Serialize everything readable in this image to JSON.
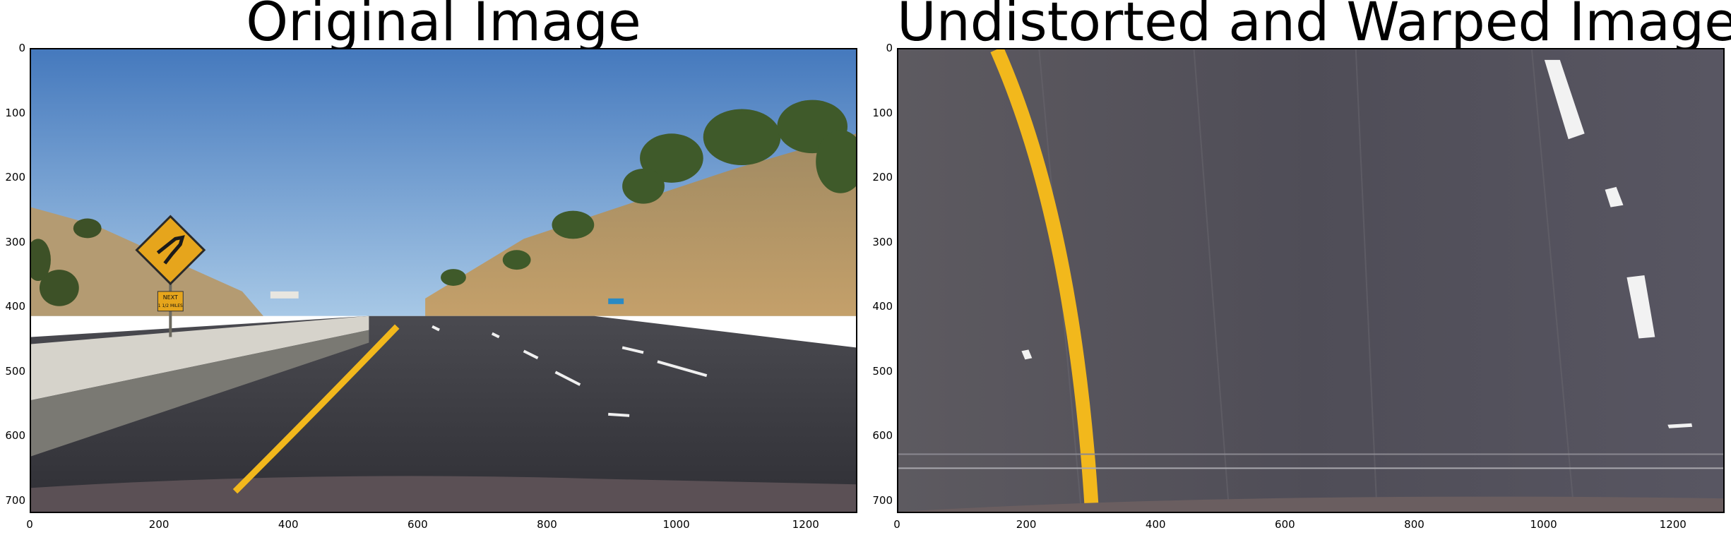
{
  "panels": [
    {
      "title": "Original Image",
      "xticks": [
        "0",
        "200",
        "400",
        "600",
        "800",
        "1000",
        "1200"
      ],
      "yticks": [
        "0",
        "100",
        "200",
        "300",
        "400",
        "500",
        "600",
        "700"
      ],
      "sign": {
        "line1": "NEXT",
        "line2": "1 1/2 MILES"
      }
    },
    {
      "title": "Undistorted and Warped Image",
      "xticks": [
        "0",
        "200",
        "400",
        "600",
        "800",
        "1000",
        "1200"
      ],
      "yticks": [
        "0",
        "100",
        "200",
        "300",
        "400",
        "500",
        "600",
        "700"
      ]
    }
  ],
  "axis": {
    "xmax": 1280,
    "ymax": 720
  },
  "colors": {
    "sky_top": "#4a7fc0",
    "sky_bottom": "#9ec3e6",
    "road": "#3b3b40",
    "lane_yellow": "#f2b81c",
    "hill": "#b89868",
    "tree": "#3f5a2a",
    "warp_bg": "#55545e"
  }
}
